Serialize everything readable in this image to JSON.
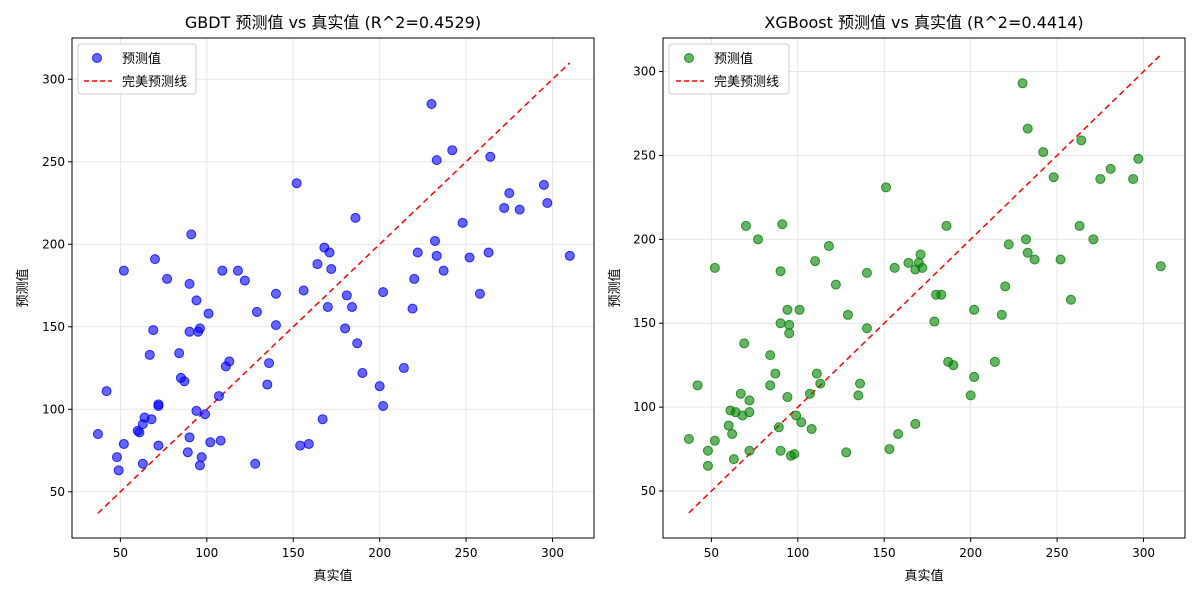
{
  "colors": {
    "gbdt_marker": "#0000ff",
    "xgb_marker": "#008000",
    "perfect_line": "#ff0000",
    "grid": "#e6e6e6",
    "axis": "#000000",
    "legend_border": "#cccccc"
  },
  "chart_data": [
    {
      "type": "scatter",
      "title": "GBDT 预测值 vs 真实值 (R^2=0.4529)",
      "xlabel": "真实值",
      "ylabel": "预测值",
      "xlim": [
        22,
        324
      ],
      "ylim": [
        22,
        325
      ],
      "xticks": [
        50,
        100,
        150,
        200,
        250,
        300
      ],
      "yticks": [
        50,
        100,
        150,
        200,
        250,
        300
      ],
      "grid": true,
      "legend_position": "top-left",
      "series": [
        {
          "name": "预测值",
          "color": "#0000ff",
          "points": [
            [
              37,
              85
            ],
            [
              42,
              111
            ],
            [
              48,
              71
            ],
            [
              49,
              63
            ],
            [
              52,
              79
            ],
            [
              52,
              184
            ],
            [
              60,
              87
            ],
            [
              61,
              86
            ],
            [
              63,
              67
            ],
            [
              63,
              91
            ],
            [
              64,
              95
            ],
            [
              67,
              133
            ],
            [
              68,
              94
            ],
            [
              69,
              148
            ],
            [
              70,
              191
            ],
            [
              72,
              103
            ],
            [
              72,
              102
            ],
            [
              72,
              78
            ],
            [
              77,
              179
            ],
            [
              84,
              134
            ],
            [
              85,
              119
            ],
            [
              87,
              117
            ],
            [
              89,
              74
            ],
            [
              90,
              83
            ],
            [
              90,
              176
            ],
            [
              91,
              206
            ],
            [
              90,
              147
            ],
            [
              94,
              166
            ],
            [
              94,
              99
            ],
            [
              95,
              147
            ],
            [
              96,
              149
            ],
            [
              96,
              66
            ],
            [
              97,
              71
            ],
            [
              99,
              97
            ],
            [
              101,
              158
            ],
            [
              102,
              80
            ],
            [
              107,
              108
            ],
            [
              108,
              81
            ],
            [
              109,
              184
            ],
            [
              111,
              126
            ],
            [
              113,
              129
            ],
            [
              118,
              184
            ],
            [
              122,
              178
            ],
            [
              128,
              67
            ],
            [
              129,
              159
            ],
            [
              135,
              115
            ],
            [
              136,
              128
            ],
            [
              140,
              170
            ],
            [
              140,
              151
            ],
            [
              152,
              237
            ],
            [
              154,
              78
            ],
            [
              156,
              172
            ],
            [
              159,
              79
            ],
            [
              164,
              188
            ],
            [
              167,
              94
            ],
            [
              168,
              198
            ],
            [
              170,
              162
            ],
            [
              171,
              195
            ],
            [
              172,
              185
            ],
            [
              180,
              149
            ],
            [
              181,
              169
            ],
            [
              184,
              162
            ],
            [
              186,
              216
            ],
            [
              187,
              140
            ],
            [
              190,
              122
            ],
            [
              200,
              114
            ],
            [
              202,
              171
            ],
            [
              202,
              102
            ],
            [
              214,
              125
            ],
            [
              219,
              161
            ],
            [
              220,
              179
            ],
            [
              222,
              195
            ],
            [
              230,
              285
            ],
            [
              232,
              202
            ],
            [
              233,
              193
            ],
            [
              233,
              251
            ],
            [
              237,
              184
            ],
            [
              242,
              257
            ],
            [
              248,
              213
            ],
            [
              252,
              192
            ],
            [
              258,
              170
            ],
            [
              263,
              195
            ],
            [
              264,
              253
            ],
            [
              272,
              222
            ],
            [
              275,
              231
            ],
            [
              281,
              221
            ],
            [
              295,
              236
            ],
            [
              297,
              225
            ],
            [
              310,
              193
            ]
          ]
        },
        {
          "name": "完美预测线",
          "color": "#ff0000",
          "line": [
            [
              37,
              37
            ],
            [
              310,
              310
            ]
          ]
        }
      ]
    },
    {
      "type": "scatter",
      "title": "XGBoost 预测值 vs 真实值 (R^2=0.4414)",
      "xlabel": "真实值",
      "ylabel": "预测值",
      "xlim": [
        22,
        324
      ],
      "ylim": [
        22,
        320
      ],
      "xticks": [
        50,
        100,
        150,
        200,
        250,
        300
      ],
      "yticks": [
        50,
        100,
        150,
        200,
        250,
        300
      ],
      "grid": true,
      "legend_position": "top-left",
      "series": [
        {
          "name": "预测值",
          "color": "#008000",
          "points": [
            [
              37,
              81
            ],
            [
              42,
              113
            ],
            [
              48,
              74
            ],
            [
              48,
              65
            ],
            [
              52,
              80
            ],
            [
              52,
              183
            ],
            [
              60,
              89
            ],
            [
              61,
              98
            ],
            [
              62,
              84
            ],
            [
              63,
              69
            ],
            [
              64,
              97
            ],
            [
              67,
              108
            ],
            [
              68,
              95
            ],
            [
              69,
              138
            ],
            [
              70,
              208
            ],
            [
              72,
              104
            ],
            [
              72,
              97
            ],
            [
              72,
              74
            ],
            [
              77,
              200
            ],
            [
              84,
              131
            ],
            [
              84,
              113
            ],
            [
              87,
              120
            ],
            [
              89,
              88
            ],
            [
              90,
              74
            ],
            [
              90,
              181
            ],
            [
              91,
              209
            ],
            [
              90,
              150
            ],
            [
              94,
              106
            ],
            [
              94,
              158
            ],
            [
              95,
              144
            ],
            [
              95,
              149
            ],
            [
              96,
              71
            ],
            [
              98,
              72
            ],
            [
              99,
              95
            ],
            [
              101,
              158
            ],
            [
              102,
              91
            ],
            [
              107,
              108
            ],
            [
              108,
              87
            ],
            [
              110,
              187
            ],
            [
              111,
              120
            ],
            [
              113,
              114
            ],
            [
              118,
              196
            ],
            [
              122,
              173
            ],
            [
              128,
              73
            ],
            [
              129,
              155
            ],
            [
              135,
              107
            ],
            [
              136,
              114
            ],
            [
              140,
              180
            ],
            [
              140,
              147
            ],
            [
              151,
              231
            ],
            [
              153,
              75
            ],
            [
              156,
              183
            ],
            [
              158,
              84
            ],
            [
              164,
              186
            ],
            [
              168,
              90
            ],
            [
              168,
              182
            ],
            [
              170,
              186
            ],
            [
              171,
              191
            ],
            [
              172,
              183
            ],
            [
              179,
              151
            ],
            [
              180,
              167
            ],
            [
              183,
              167
            ],
            [
              186,
              208
            ],
            [
              187,
              127
            ],
            [
              190,
              125
            ],
            [
              200,
              107
            ],
            [
              202,
              158
            ],
            [
              202,
              118
            ],
            [
              214,
              127
            ],
            [
              218,
              155
            ],
            [
              220,
              172
            ],
            [
              222,
              197
            ],
            [
              230,
              293
            ],
            [
              232,
              200
            ],
            [
              233,
              192
            ],
            [
              233,
              266
            ],
            [
              237,
              188
            ],
            [
              242,
              252
            ],
            [
              248,
              237
            ],
            [
              252,
              188
            ],
            [
              258,
              164
            ],
            [
              263,
              208
            ],
            [
              264,
              259
            ],
            [
              271,
              200
            ],
            [
              275,
              236
            ],
            [
              281,
              242
            ],
            [
              294,
              236
            ],
            [
              297,
              248
            ],
            [
              310,
              184
            ]
          ]
        },
        {
          "name": "完美预测线",
          "color": "#ff0000",
          "line": [
            [
              37,
              37
            ],
            [
              310,
              310
            ]
          ]
        }
      ]
    }
  ]
}
